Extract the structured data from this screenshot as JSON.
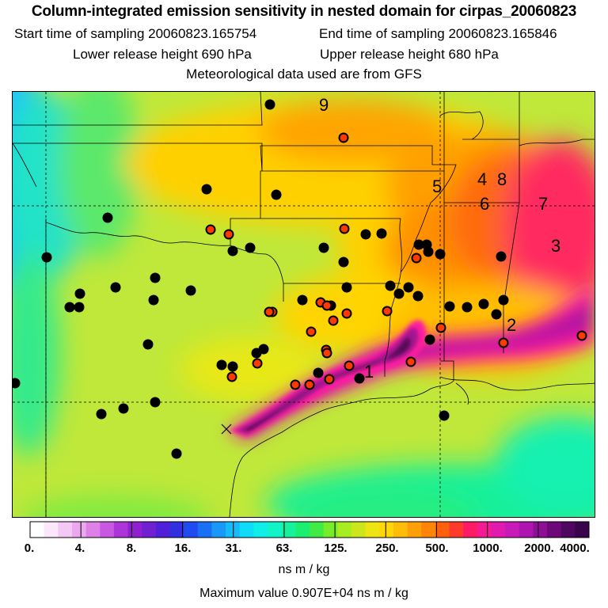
{
  "titles": {
    "main": "Column-integrated emission sensitivity in nested domain for cirpas_20060823",
    "start_label": "Start time of sampling 20060823.165754",
    "end_label": "End time of sampling 20060823.165846",
    "lower_label": "Lower release height  690 hPa",
    "upper_label": "Upper release height  680 hPa",
    "met_label": "Meteorological data used are from GFS"
  },
  "colorbar": {
    "ticks": [
      "0.",
      "4.",
      "8.",
      "16.",
      "31.",
      "63.",
      "125.",
      "250.",
      "500.",
      "1000.",
      "2000.",
      "4000."
    ],
    "unit": "ns m / kg",
    "colors": [
      "#ffffff",
      "#fbe6fb",
      "#f4c8f4",
      "#eba8ee",
      "#de80e8",
      "#c858e0",
      "#ad34d8",
      "#9020cf",
      "#7020d0",
      "#5020d8",
      "#3030e0",
      "#1e4cf0",
      "#1a70f4",
      "#1a98f8",
      "#14bdfa",
      "#10dcf8",
      "#10eee8",
      "#12f4c8",
      "#16f29c",
      "#1cee70",
      "#40ec44",
      "#78ec2a",
      "#a8ec22",
      "#cce61e",
      "#eee414",
      "#ffd60a",
      "#ffbc08",
      "#ffa008",
      "#ff8408",
      "#ff600e",
      "#ff3a2a",
      "#ff1a66",
      "#f41a94",
      "#e01aae",
      "#c81ab8",
      "#ad14b0",
      "#8e0e96",
      "#6c0878",
      "#4e0660",
      "#3a044c"
    ]
  },
  "max_value_label": "Maximum value  0.907E+04 ns m / kg",
  "map": {
    "labels": [
      "9",
      "5",
      "4",
      "8",
      "6",
      "7",
      "3",
      "2",
      "1"
    ],
    "colors": {
      "background": "#bfe83a",
      "ocean": "#19f09a",
      "far_west": "#20c4f4",
      "plume_core": "#4e0a50",
      "plume_mid": "#a81488",
      "plume_edge": "#ff1aa0",
      "orange": "#ff9a00",
      "yellow": "#ffd000",
      "marker_black": "#000000",
      "marker_red": "#ff3a00"
    },
    "markers": {
      "black": [
        [
          340,
          131
        ],
        [
          260,
          238
        ],
        [
          348,
          245
        ],
        [
          135,
          274
        ],
        [
          58,
          324
        ],
        [
          293,
          316
        ],
        [
          315,
          312
        ],
        [
          408,
          312
        ],
        [
          433,
          330
        ],
        [
          437,
          362
        ],
        [
          481,
          294
        ],
        [
          461,
          295
        ],
        [
          195,
          350
        ],
        [
          145,
          362
        ],
        [
          100,
          370
        ],
        [
          240,
          366
        ],
        [
          193,
          378
        ],
        [
          87,
          387
        ],
        [
          99,
          387
        ],
        [
          381,
          378
        ],
        [
          417,
          385
        ],
        [
          492,
          360
        ],
        [
          515,
          362
        ],
        [
          527,
          373
        ],
        [
          503,
          370
        ],
        [
          528,
          308
        ],
        [
          540,
          317
        ],
        [
          555,
          320
        ],
        [
          538,
          308
        ],
        [
          632,
          323
        ],
        [
          635,
          378
        ],
        [
          567,
          386
        ],
        [
          589,
          387
        ],
        [
          610,
          383
        ],
        [
          626,
          396
        ],
        [
          186,
          434
        ],
        [
          332,
          440
        ],
        [
          323,
          445
        ],
        [
          279,
          460
        ],
        [
          293,
          462
        ],
        [
          401,
          470
        ],
        [
          453,
          477
        ],
        [
          127,
          522
        ],
        [
          155,
          515
        ],
        [
          195,
          507
        ],
        [
          542,
          428
        ],
        [
          560,
          524
        ],
        [
          222,
          572
        ],
        [
          18,
          483
        ]
      ],
      "red": [
        [
          433,
          173
        ],
        [
          265,
          289
        ],
        [
          288,
          295
        ],
        [
          434,
          288
        ],
        [
          525,
          325
        ],
        [
          404,
          381
        ],
        [
          412,
          385
        ],
        [
          437,
          395
        ],
        [
          343,
          393
        ],
        [
          339,
          393
        ],
        [
          420,
          404
        ],
        [
          392,
          418
        ],
        [
          488,
          392
        ],
        [
          411,
          441
        ],
        [
          412,
          445
        ],
        [
          324,
          458
        ],
        [
          292,
          475
        ],
        [
          372,
          485
        ],
        [
          390,
          485
        ],
        [
          415,
          478
        ],
        [
          440,
          461
        ],
        [
          518,
          456
        ],
        [
          556,
          413
        ],
        [
          635,
          432
        ],
        [
          734,
          423
        ]
      ]
    }
  }
}
